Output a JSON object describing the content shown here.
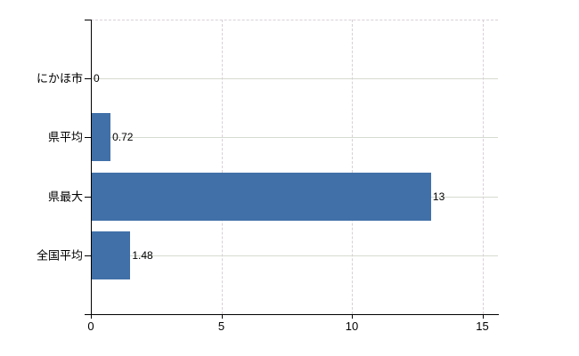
{
  "chart_data": {
    "type": "bar",
    "orientation": "horizontal",
    "title": "",
    "xlabel": "",
    "ylabel": "",
    "legend": "none",
    "categories": [
      "にかほ市",
      "県平均",
      "県最大",
      "全国平均"
    ],
    "values": [
      0,
      0.72,
      13,
      1.48
    ],
    "value_labels": [
      "0",
      "0.72",
      "13",
      "1.48"
    ],
    "x_ticks": [
      "0",
      "5",
      "10",
      "15"
    ],
    "x_tick_values": [
      0,
      5,
      10,
      15
    ],
    "xlim": [
      0,
      15.63
    ],
    "grid": {
      "horizontal": "solid line at each category center",
      "vertical": "dashed lines at x ticks 5, 10, 15",
      "top_border": "dashed"
    },
    "colors": {
      "bar": "#4170a8",
      "axis": "#000000",
      "text": "#000000",
      "grid_solid": "#d6dbd0",
      "grid_dashed": "#d8d1d7",
      "background": "#ffffff"
    }
  }
}
